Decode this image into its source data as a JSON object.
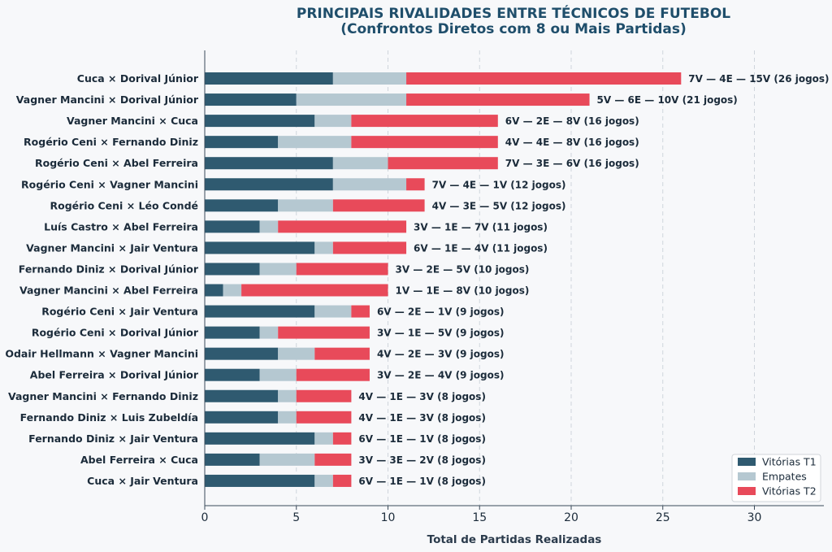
{
  "chart_data": {
    "type": "bar",
    "orientation": "horizontal",
    "stacked": true,
    "title": "PRINCIPAIS RIVALIDADES ENTRE TÉCNICOS DE FUTEBOL",
    "subtitle": "(Confrontos Diretos com 8 ou Mais Partidas)",
    "xlabel": "Total de Partidas Realizadas",
    "ylabel": "",
    "xlim": [
      0,
      34
    ],
    "xticks": [
      "0",
      "5",
      "10",
      "15",
      "20",
      "25",
      "30"
    ],
    "grid": "vertical dashed",
    "legend_position": "bottom-right",
    "categories": [
      "Cuca  ×  Dorival Júnior",
      "Vagner Mancini  ×  Dorival Júnior",
      "Vagner Mancini  ×  Cuca",
      "Rogério Ceni  ×  Fernando Diniz",
      "Rogério Ceni  ×  Abel Ferreira",
      "Rogério Ceni  ×  Vagner Mancini",
      "Rogério Ceni  ×  Léo Condé",
      "Luís Castro  ×  Abel Ferreira",
      "Vagner Mancini  ×  Jair Ventura",
      "Fernando Diniz  ×  Dorival Júnior",
      "Vagner Mancini  ×  Abel Ferreira",
      "Rogério Ceni  ×  Jair Ventura",
      "Rogério Ceni  ×  Dorival Júnior",
      "Odair Hellmann  ×  Vagner Mancini",
      "Abel Ferreira  ×  Dorival Júnior",
      "Vagner Mancini  ×  Fernando Diniz",
      "Fernando Diniz  ×  Luis Zubeldía",
      "Fernando Diniz  ×  Jair Ventura",
      "Abel Ferreira  ×  Cuca",
      "Cuca  ×  Jair Ventura"
    ],
    "series": [
      {
        "name": "Vitórias T1",
        "color": "#2f5a70",
        "values": [
          7,
          5,
          6,
          4,
          7,
          7,
          4,
          3,
          6,
          3,
          1,
          6,
          3,
          4,
          3,
          4,
          4,
          6,
          3,
          6
        ]
      },
      {
        "name": "Empates",
        "color": "#b5c8d1",
        "values": [
          4,
          6,
          2,
          4,
          3,
          4,
          3,
          1,
          1,
          2,
          1,
          2,
          1,
          2,
          2,
          1,
          1,
          1,
          3,
          1
        ]
      },
      {
        "name": "Vitórias T2",
        "color": "#e84a5a",
        "values": [
          15,
          10,
          8,
          8,
          6,
          1,
          5,
          7,
          4,
          5,
          8,
          1,
          5,
          3,
          4,
          3,
          3,
          1,
          2,
          1
        ]
      }
    ],
    "data_labels": [
      "7V — 4E — 15V  (26 jogos)",
      "5V — 6E — 10V  (21 jogos)",
      "6V — 2E — 8V  (16 jogos)",
      "4V — 4E — 8V  (16 jogos)",
      "7V — 3E — 6V  (16 jogos)",
      "7V — 4E — 1V  (12 jogos)",
      "4V — 3E — 5V  (12 jogos)",
      "3V — 1E — 7V  (11 jogos)",
      "6V — 1E — 4V  (11 jogos)",
      "3V — 2E — 5V  (10 jogos)",
      "1V — 1E — 8V  (10 jogos)",
      "6V — 2E — 1V  (9 jogos)",
      "3V — 1E — 5V  (9 jogos)",
      "4V — 2E — 3V  (9 jogos)",
      "3V — 2E — 4V  (9 jogos)",
      "4V — 1E — 3V  (8 jogos)",
      "4V — 1E — 3V  (8 jogos)",
      "6V — 1E — 1V  (8 jogos)",
      "3V — 3E — 2V  (8 jogos)",
      "6V — 1E — 1V  (8 jogos)"
    ]
  }
}
